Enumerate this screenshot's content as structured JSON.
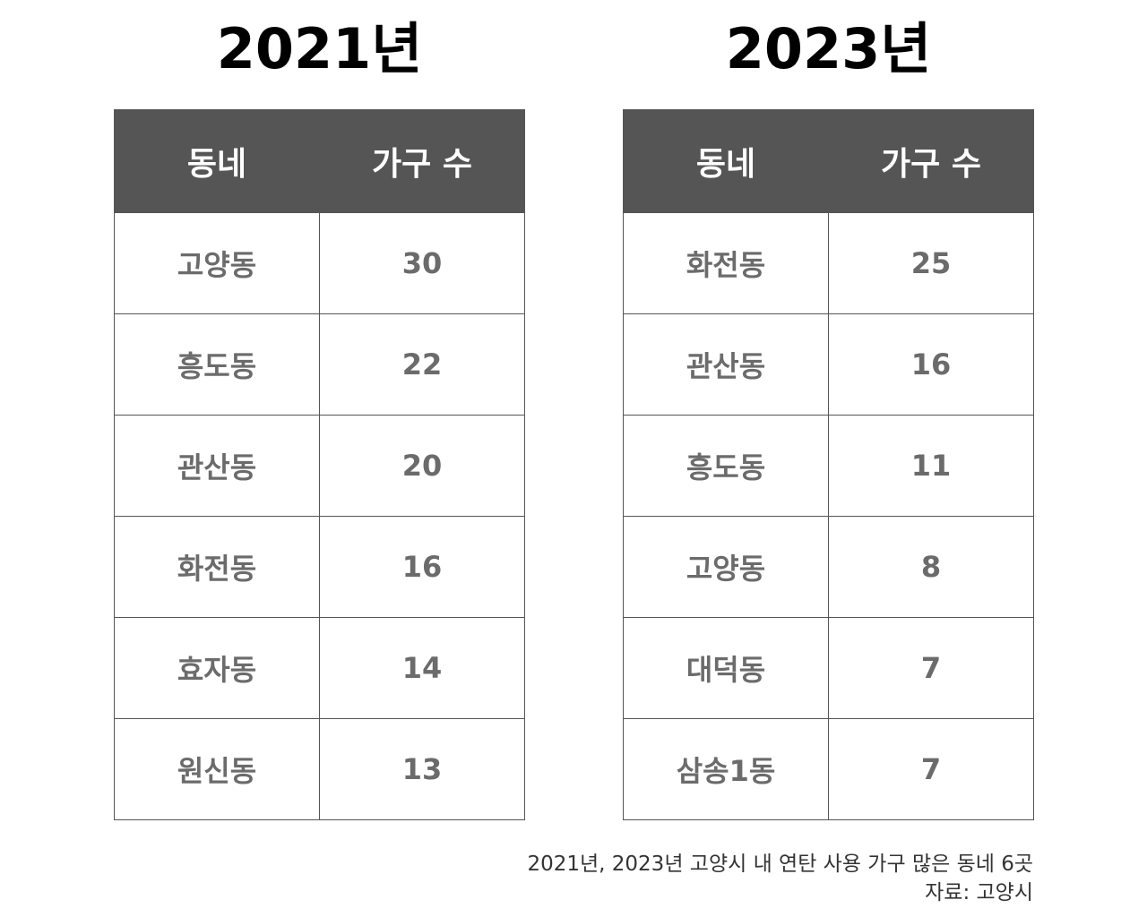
{
  "tables": [
    {
      "title": "2021년",
      "header": [
        "동네",
        "가구 수"
      ],
      "rows": [
        [
          "고양동",
          30
        ],
        [
          "흥도동",
          22
        ],
        [
          "관산동",
          20
        ],
        [
          "화전동",
          16
        ],
        [
          "효자동",
          14
        ],
        [
          "원신동",
          13
        ]
      ]
    },
    {
      "title": "2023년",
      "header": [
        "동네",
        "가구 수"
      ],
      "rows": [
        [
          "화전동",
          25
        ],
        [
          "관산동",
          16
        ],
        [
          "흥도동",
          11
        ],
        [
          "고양동",
          8
        ],
        [
          "대덕동",
          7
        ],
        [
          "삼송1동",
          7
        ]
      ]
    }
  ],
  "footer": {
    "caption": "2021년, 2023년 고양시 내 연탄 사용 가구 많은 동네 6곳",
    "source": "자료: 고양시"
  }
}
